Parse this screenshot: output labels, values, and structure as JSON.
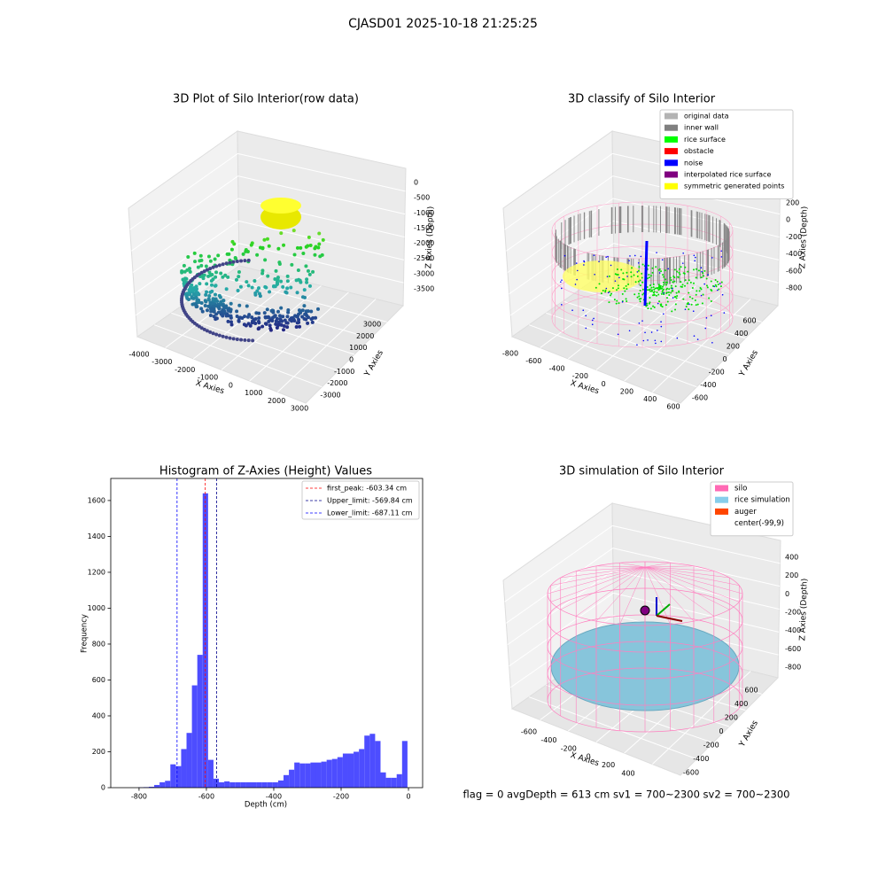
{
  "suptitle": "CJASD01 2025-10-18 21:25:25",
  "footer": "flag = 0     avgDepth = 613 cm  sv1 = 700~2300  sv2 = 700~2300",
  "chart_data": [
    {
      "type": "scatter3d",
      "title": "3D Plot of Silo Interior(row data)",
      "xlabel": "X Axies",
      "ylabel": "Y Axies",
      "zlabel": "Z Axies (Depth)",
      "xticks": [
        -4000,
        -3000,
        -2000,
        -1000,
        0,
        1000,
        2000,
        3000
      ],
      "yticks": [
        -3000,
        -2000,
        -1000,
        0,
        1000,
        2000,
        3000
      ],
      "zticks": [
        0,
        -500,
        -1000,
        -1500,
        -2000,
        -2500,
        -3000,
        -3500
      ]
    },
    {
      "type": "scatter3d",
      "title": "3D classify of Silo Interior",
      "xlabel": "X Axies",
      "ylabel": "Y Axies",
      "zlabel": "Z Axies (Depth)",
      "xticks": [
        -800,
        -600,
        -400,
        -200,
        0,
        200,
        400,
        600
      ],
      "yticks": [
        -600,
        -400,
        -200,
        0,
        200,
        400,
        600
      ],
      "zticks": [
        200,
        0,
        -200,
        -400,
        -600,
        -800
      ],
      "legend": [
        {
          "name": "original data",
          "color": "#b3b3b3"
        },
        {
          "name": "inner wall",
          "color": "#808080"
        },
        {
          "name": "rice surface",
          "color": "#00ff00"
        },
        {
          "name": "obstacle",
          "color": "#ff0000"
        },
        {
          "name": "noise",
          "color": "#0000ff"
        },
        {
          "name": "interpolated rice surface",
          "color": "#800080"
        },
        {
          "name": "symmetric generated points",
          "color": "#ffff00"
        }
      ]
    },
    {
      "type": "histogram",
      "title": "Histogram of Z-Axies (Height) Values",
      "xlabel": "Depth (cm)",
      "ylabel": "Frequency",
      "color": "#4d4dff",
      "bins": [
        -835,
        -819,
        -803,
        -787,
        -771,
        -755,
        -739,
        -723,
        -707,
        -691,
        -675,
        -659,
        -643,
        -627,
        -611,
        -595,
        -579,
        -563,
        -547,
        -531,
        -515,
        -499,
        -483,
        -467,
        -451,
        -435,
        -419,
        -403,
        -387,
        -371,
        -355,
        -339,
        -323,
        -307,
        -291,
        -275,
        -259,
        -243,
        -227,
        -211,
        -195,
        -179,
        -163,
        -147,
        -131,
        -115,
        -99,
        -83,
        -67,
        -51,
        -35,
        -19,
        -3
      ],
      "counts": [
        0,
        0,
        2,
        3,
        5,
        15,
        30,
        38,
        130,
        120,
        215,
        305,
        570,
        740,
        1640,
        155,
        50,
        30,
        35,
        30,
        30,
        30,
        30,
        30,
        30,
        30,
        30,
        30,
        40,
        70,
        100,
        140,
        135,
        135,
        140,
        140,
        145,
        155,
        160,
        170,
        190,
        190,
        200,
        215,
        290,
        300,
        260,
        85,
        55,
        55,
        75,
        260
      ],
      "xlim": [
        -884,
        42
      ],
      "ylim": [
        0,
        1723
      ],
      "xticks": [
        -800,
        -600,
        -400,
        -200,
        0
      ],
      "yticks": [
        0,
        200,
        400,
        600,
        800,
        1000,
        1200,
        1400,
        1600
      ],
      "lines": [
        {
          "label": "first_peak: -603.34 cm",
          "value": -603.34,
          "color": "#ff0000"
        },
        {
          "label": "Upper_limit: -569.84 cm",
          "value": -569.84,
          "color": "#00008b"
        },
        {
          "label": "Lower_limit: -687.11 cm",
          "value": -687.11,
          "color": "#0000ff"
        }
      ]
    },
    {
      "type": "surface3d",
      "title": "3D simulation of Silo Interior",
      "xlabel": "X Axies",
      "ylabel": "Y Axies",
      "zlabel": "Z Axies (Depth)",
      "xticks": [
        -600,
        -400,
        -200,
        0,
        200,
        400
      ],
      "yticks": [
        -600,
        -400,
        -200,
        0,
        200,
        400,
        600
      ],
      "zticks": [
        400,
        200,
        0,
        -200,
        -400,
        -600,
        -800
      ],
      "legend": [
        {
          "name": "silo",
          "color": "#ff69b4"
        },
        {
          "name": "rice simulation",
          "color": "#87ceeb"
        },
        {
          "name": "auger",
          "color": "#ff4500"
        },
        {
          "name": "center(-99,9)",
          "color": "#ffffff"
        }
      ]
    }
  ]
}
